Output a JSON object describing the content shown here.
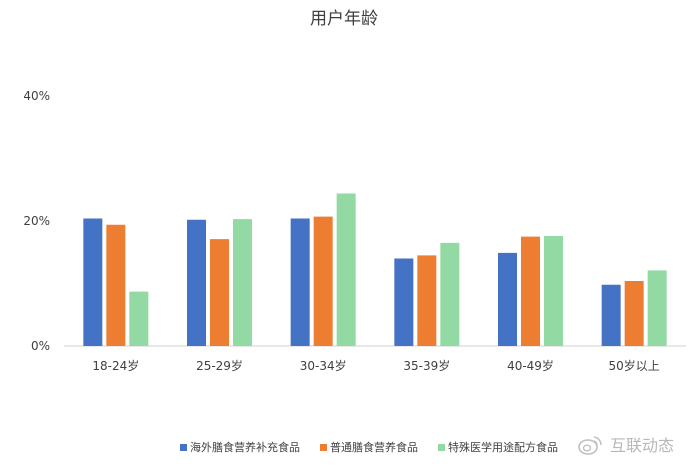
{
  "chart_data": {
    "type": "bar",
    "title": "用户年龄",
    "categories": [
      "18-24岁",
      "25-29岁",
      "30-34岁",
      "35-39岁",
      "40-49岁",
      "50岁以上"
    ],
    "series": [
      {
        "name": "海外膳食营养补充食品",
        "color": "#4472C4",
        "values": [
          20.4,
          20.2,
          20.4,
          14.0,
          14.9,
          9.8
        ]
      },
      {
        "name": "普通膳食营养食品",
        "color": "#ED7D31",
        "values": [
          19.4,
          17.1,
          20.7,
          14.5,
          17.5,
          10.4
        ]
      },
      {
        "name": "特殊医学用途配方食品",
        "color": "#92D9A4",
        "values": [
          8.7,
          20.3,
          24.4,
          16.5,
          17.6,
          12.1
        ]
      }
    ],
    "y_ticks": [
      "0%",
      "20%",
      "40%"
    ],
    "ylim": [
      0,
      40
    ],
    "grid": false,
    "legend_position": "bottom"
  },
  "watermark": {
    "text": "互联动态",
    "icon": "weibo-icon"
  }
}
